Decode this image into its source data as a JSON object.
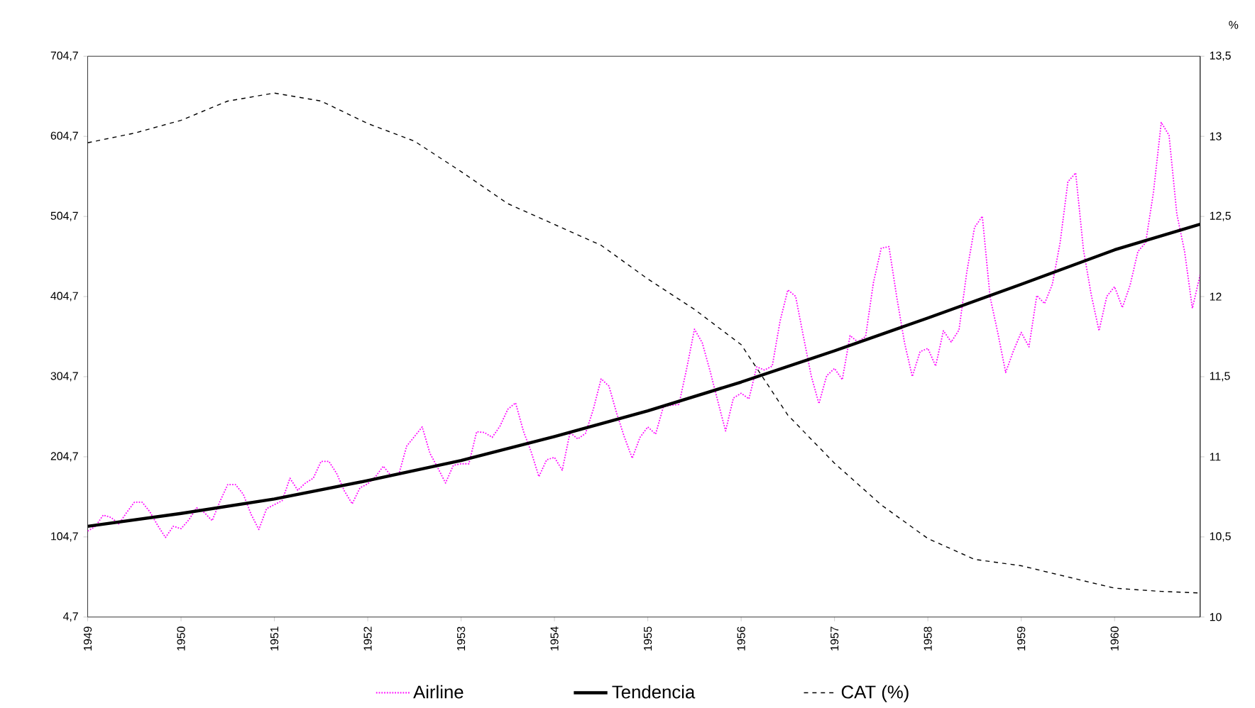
{
  "chart_data": {
    "type": "line",
    "x": [
      "1949-01",
      "1949-02",
      "1949-03",
      "1949-04",
      "1949-05",
      "1949-06",
      "1949-07",
      "1949-08",
      "1949-09",
      "1949-10",
      "1949-11",
      "1949-12",
      "1950-01",
      "1950-02",
      "1950-03",
      "1950-04",
      "1950-05",
      "1950-06",
      "1950-07",
      "1950-08",
      "1950-09",
      "1950-10",
      "1950-11",
      "1950-12",
      "1951-01",
      "1951-02",
      "1951-03",
      "1951-04",
      "1951-05",
      "1951-06",
      "1951-07",
      "1951-08",
      "1951-09",
      "1951-10",
      "1951-11",
      "1951-12",
      "1952-01",
      "1952-02",
      "1952-03",
      "1952-04",
      "1952-05",
      "1952-06",
      "1952-07",
      "1952-08",
      "1952-09",
      "1952-10",
      "1952-11",
      "1952-12",
      "1953-01",
      "1953-02",
      "1953-03",
      "1953-04",
      "1953-05",
      "1953-06",
      "1953-07",
      "1953-08",
      "1953-09",
      "1953-10",
      "1953-11",
      "1953-12",
      "1954-01",
      "1954-02",
      "1954-03",
      "1954-04",
      "1954-05",
      "1954-06",
      "1954-07",
      "1954-08",
      "1954-09",
      "1954-10",
      "1954-11",
      "1954-12",
      "1955-01",
      "1955-02",
      "1955-03",
      "1955-04",
      "1955-05",
      "1955-06",
      "1955-07",
      "1955-08",
      "1955-09",
      "1955-10",
      "1955-11",
      "1955-12",
      "1956-01",
      "1956-02",
      "1956-03",
      "1956-04",
      "1956-05",
      "1956-06",
      "1956-07",
      "1956-08",
      "1956-09",
      "1956-10",
      "1956-11",
      "1956-12",
      "1957-01",
      "1957-02",
      "1957-03",
      "1957-04",
      "1957-05",
      "1957-06",
      "1957-07",
      "1957-08",
      "1957-09",
      "1957-10",
      "1957-11",
      "1957-12",
      "1958-01",
      "1958-02",
      "1958-03",
      "1958-04",
      "1958-05",
      "1958-06",
      "1958-07",
      "1958-08",
      "1958-09",
      "1958-10",
      "1958-11",
      "1958-12",
      "1959-01",
      "1959-02",
      "1959-03",
      "1959-04",
      "1959-05",
      "1959-06",
      "1959-07",
      "1959-08",
      "1959-09",
      "1959-10",
      "1959-11",
      "1959-12",
      "1960-01",
      "1960-02",
      "1960-03",
      "1960-04",
      "1960-05",
      "1960-06",
      "1960-07",
      "1960-08",
      "1960-09",
      "1960-10",
      "1960-11",
      "1960-12"
    ],
    "series": [
      {
        "name": "Airline",
        "color": "#ff00ff",
        "line_style": "dotted",
        "values": [
          112,
          118,
          132,
          129,
          121,
          135,
          148,
          148,
          136,
          119,
          104,
          118,
          115,
          126,
          141,
          135,
          125,
          149,
          170,
          170,
          158,
          133,
          114,
          140,
          145,
          150,
          178,
          163,
          172,
          178,
          199,
          199,
          184,
          162,
          146,
          166,
          171,
          180,
          193,
          181,
          183,
          218,
          230,
          242,
          209,
          191,
          172,
          194,
          196,
          196,
          236,
          235,
          229,
          243,
          264,
          272,
          237,
          211,
          180,
          201,
          204,
          188,
          235,
          227,
          234,
          264,
          302,
          293,
          259,
          229,
          203,
          229,
          242,
          233,
          267,
          269,
          270,
          315,
          364,
          347,
          312,
          274,
          237,
          278,
          284,
          277,
          317,
          313,
          318,
          374,
          413,
          405,
          355,
          306,
          271,
          306,
          315,
          301,
          356,
          348,
          355,
          422,
          465,
          467,
          404,
          347,
          305,
          336,
          340,
          318,
          362,
          348,
          363,
          435,
          491,
          505,
          404,
          359,
          310,
          337,
          360,
          342,
          406,
          396,
          420,
          472,
          548,
          559,
          463,
          407,
          362,
          405,
          417,
          391,
          419,
          461,
          472,
          535,
          622,
          606,
          508,
          461,
          390,
          432
        ]
      },
      {
        "name": "Tendencia",
        "color": "#000000",
        "line_style": "solid",
        "x": [
          "1949-01",
          "1950-01",
          "1951-01",
          "1952-01",
          "1953-01",
          "1954-01",
          "1955-01",
          "1956-01",
          "1957-01",
          "1958-01",
          "1959-01",
          "1960-01",
          "1960-12"
        ],
        "values": [
          118,
          134,
          152,
          175,
          200,
          230,
          262,
          298,
          337,
          378,
          420,
          463,
          495
        ]
      },
      {
        "name": "CAT (%)",
        "color": "#000000",
        "line_style": "dashed",
        "axis": "y2",
        "x": [
          "1949-01",
          "1949-07",
          "1950-01",
          "1950-07",
          "1951-01",
          "1951-07",
          "1952-01",
          "1952-07",
          "1953-01",
          "1953-07",
          "1954-01",
          "1954-07",
          "1955-01",
          "1955-07",
          "1956-01",
          "1956-07",
          "1957-01",
          "1957-07",
          "1958-01",
          "1958-07",
          "1959-01",
          "1959-07",
          "1960-01",
          "1960-07",
          "1960-12"
        ],
        "values": [
          12.96,
          13.02,
          13.1,
          13.22,
          13.27,
          13.22,
          13.08,
          12.97,
          12.78,
          12.58,
          12.45,
          12.32,
          12.11,
          11.92,
          11.7,
          11.26,
          10.96,
          10.7,
          10.49,
          10.36,
          10.32,
          10.25,
          10.18,
          10.16,
          10.15
        ]
      }
    ],
    "xlim": [
      "1949-01",
      "1960-12"
    ],
    "xticks": [
      "1949",
      "1950",
      "1951",
      "1952",
      "1953",
      "1954",
      "1955",
      "1956",
      "1957",
      "1958",
      "1959",
      "1960"
    ],
    "ylim": [
      4.7,
      704.7
    ],
    "yticks": [
      {
        "value": 4.7,
        "label": "4,7"
      },
      {
        "value": 104.7,
        "label": "104,7"
      },
      {
        "value": 204.7,
        "label": "204,7"
      },
      {
        "value": 304.7,
        "label": "304,7"
      },
      {
        "value": 404.7,
        "label": "404,7"
      },
      {
        "value": 504.7,
        "label": "504,7"
      },
      {
        "value": 604.7,
        "label": "604,7"
      },
      {
        "value": 704.7,
        "label": "704,7"
      }
    ],
    "y2lim": [
      10,
      13.5
    ],
    "y2ticks": [
      10,
      {
        "value": 10.5,
        "label": "10,5"
      },
      11,
      {
        "value": 11.5,
        "label": "11,5"
      },
      12,
      {
        "value": 12.5,
        "label": "12,5"
      },
      13,
      {
        "value": 13.5,
        "label": "13,5"
      }
    ],
    "y2label": "%",
    "legend": "bottom",
    "marker": "none",
    "grid": false
  }
}
